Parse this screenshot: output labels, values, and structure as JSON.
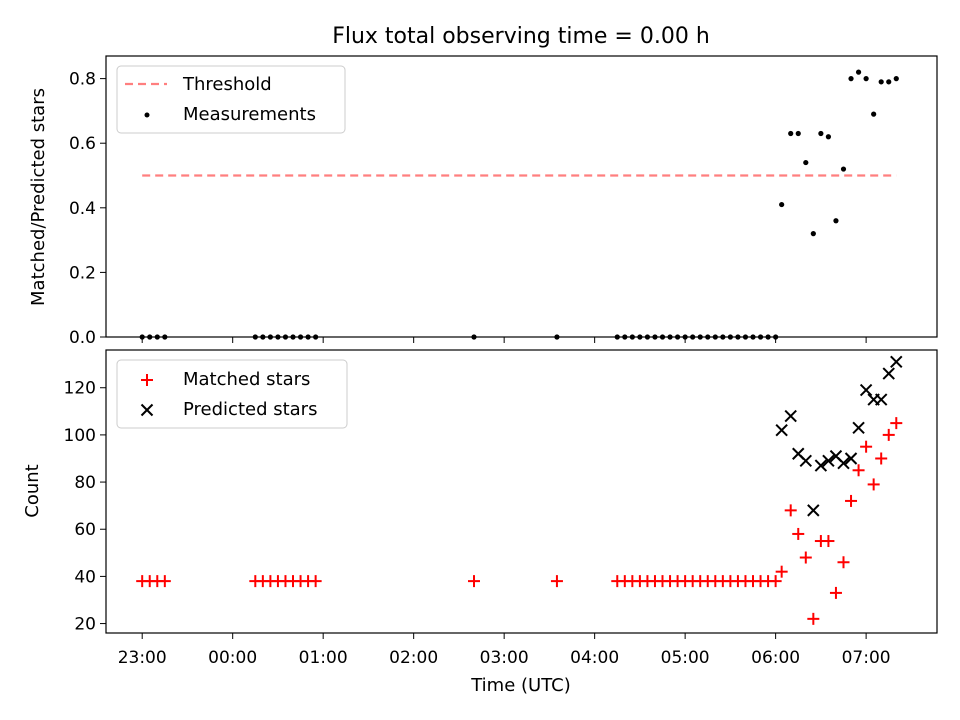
{
  "title": "Flux total observing time = 0.00 h",
  "colors": {
    "threshold": "#ff7f7f",
    "measurement": "#000000",
    "matched": "#ff0000",
    "predicted": "#000000"
  },
  "chart_data": [
    {
      "type": "scatter",
      "ylabel": "Matched/Predicted stars",
      "xlim": [
        "22:36",
        "07:47"
      ],
      "ylim": [
        0,
        0.87
      ],
      "yticks": [
        "0.0",
        "0.2",
        "0.4",
        "0.6",
        "0.8"
      ],
      "grid": false,
      "legend_position": "upper left",
      "threshold": {
        "name": "Threshold",
        "value": 0.5,
        "x_range": [
          "23:00",
          "07:20"
        ],
        "style": "dashed"
      },
      "series": [
        {
          "name": "Measurements",
          "points": [
            [
              "23:00",
              0
            ],
            [
              "23:05",
              0
            ],
            [
              "23:10",
              0
            ],
            [
              "23:15",
              0
            ],
            [
              "00:15",
              0
            ],
            [
              "00:20",
              0
            ],
            [
              "00:25",
              0
            ],
            [
              "00:30",
              0
            ],
            [
              "00:35",
              0
            ],
            [
              "00:40",
              0
            ],
            [
              "00:45",
              0
            ],
            [
              "00:50",
              0
            ],
            [
              "00:55",
              0
            ],
            [
              "02:40",
              0
            ],
            [
              "03:35",
              0
            ],
            [
              "04:15",
              0
            ],
            [
              "04:20",
              0
            ],
            [
              "04:25",
              0
            ],
            [
              "04:30",
              0
            ],
            [
              "04:35",
              0
            ],
            [
              "04:40",
              0
            ],
            [
              "04:45",
              0
            ],
            [
              "04:50",
              0
            ],
            [
              "04:55",
              0
            ],
            [
              "05:00",
              0
            ],
            [
              "05:05",
              0
            ],
            [
              "05:10",
              0
            ],
            [
              "05:15",
              0
            ],
            [
              "05:20",
              0
            ],
            [
              "05:25",
              0
            ],
            [
              "05:30",
              0
            ],
            [
              "05:35",
              0
            ],
            [
              "05:40",
              0
            ],
            [
              "05:45",
              0
            ],
            [
              "05:50",
              0
            ],
            [
              "05:55",
              0
            ],
            [
              "06:00",
              0
            ],
            [
              "06:04",
              0.41
            ],
            [
              "06:10",
              0.63
            ],
            [
              "06:15",
              0.63
            ],
            [
              "06:20",
              0.54
            ],
            [
              "06:25",
              0.32
            ],
            [
              "06:30",
              0.63
            ],
            [
              "06:35",
              0.62
            ],
            [
              "06:40",
              0.36
            ],
            [
              "06:45",
              0.52
            ],
            [
              "06:50",
              0.8
            ],
            [
              "06:55",
              0.82
            ],
            [
              "07:00",
              0.8
            ],
            [
              "07:05",
              0.69
            ],
            [
              "07:10",
              0.79
            ],
            [
              "07:15",
              0.79
            ],
            [
              "07:20",
              0.8
            ]
          ]
        }
      ]
    },
    {
      "type": "scatter",
      "xlabel": "Time (UTC)",
      "ylabel": "Count",
      "xlim": [
        "22:36",
        "07:47"
      ],
      "ylim": [
        16,
        136
      ],
      "xticks": [
        "23:00",
        "00:00",
        "01:00",
        "02:00",
        "03:00",
        "04:00",
        "05:00",
        "06:00",
        "07:00"
      ],
      "yticks": [
        "20",
        "40",
        "60",
        "80",
        "100",
        "120"
      ],
      "grid": false,
      "legend_position": "upper left",
      "series": [
        {
          "name": "Matched stars",
          "marker": "plus",
          "points": [
            [
              "23:00",
              38
            ],
            [
              "23:05",
              38
            ],
            [
              "23:10",
              38
            ],
            [
              "23:15",
              38
            ],
            [
              "00:15",
              38
            ],
            [
              "00:20",
              38
            ],
            [
              "00:25",
              38
            ],
            [
              "00:30",
              38
            ],
            [
              "00:35",
              38
            ],
            [
              "00:40",
              38
            ],
            [
              "00:45",
              38
            ],
            [
              "00:50",
              38
            ],
            [
              "00:55",
              38
            ],
            [
              "02:40",
              38
            ],
            [
              "03:35",
              38
            ],
            [
              "04:15",
              38
            ],
            [
              "04:20",
              38
            ],
            [
              "04:25",
              38
            ],
            [
              "04:30",
              38
            ],
            [
              "04:35",
              38
            ],
            [
              "04:40",
              38
            ],
            [
              "04:45",
              38
            ],
            [
              "04:50",
              38
            ],
            [
              "04:55",
              38
            ],
            [
              "05:00",
              38
            ],
            [
              "05:05",
              38
            ],
            [
              "05:10",
              38
            ],
            [
              "05:15",
              38
            ],
            [
              "05:20",
              38
            ],
            [
              "05:25",
              38
            ],
            [
              "05:30",
              38
            ],
            [
              "05:35",
              38
            ],
            [
              "05:40",
              38
            ],
            [
              "05:45",
              38
            ],
            [
              "05:50",
              38
            ],
            [
              "05:55",
              38
            ],
            [
              "06:00",
              38
            ],
            [
              "06:04",
              42
            ],
            [
              "06:10",
              68
            ],
            [
              "06:15",
              58
            ],
            [
              "06:20",
              48
            ],
            [
              "06:25",
              22
            ],
            [
              "06:30",
              55
            ],
            [
              "06:35",
              55
            ],
            [
              "06:40",
              33
            ],
            [
              "06:45",
              46
            ],
            [
              "06:50",
              72
            ],
            [
              "06:55",
              85
            ],
            [
              "07:00",
              95
            ],
            [
              "07:05",
              79
            ],
            [
              "07:10",
              90
            ],
            [
              "07:15",
              100
            ],
            [
              "07:20",
              105
            ]
          ]
        },
        {
          "name": "Predicted stars",
          "marker": "x",
          "points": [
            [
              "06:04",
              102
            ],
            [
              "06:10",
              108
            ],
            [
              "06:15",
              92
            ],
            [
              "06:20",
              89
            ],
            [
              "06:25",
              68
            ],
            [
              "06:30",
              87
            ],
            [
              "06:35",
              89
            ],
            [
              "06:40",
              91
            ],
            [
              "06:45",
              88
            ],
            [
              "06:50",
              90
            ],
            [
              "06:55",
              103
            ],
            [
              "07:00",
              119
            ],
            [
              "07:05",
              115
            ],
            [
              "07:10",
              115
            ],
            [
              "07:15",
              126
            ],
            [
              "07:20",
              131
            ]
          ]
        }
      ]
    }
  ]
}
